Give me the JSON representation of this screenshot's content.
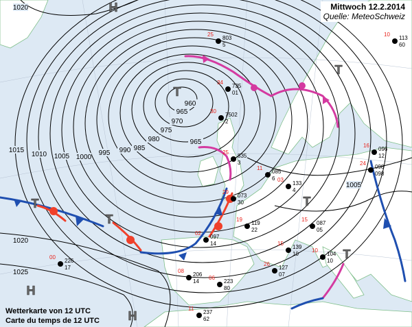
{
  "header": {
    "title": "Mittwoch 12.2.2014",
    "source": "Quelle: MeteoSchweiz"
  },
  "caption": {
    "line1": "Wetterkarte von 12 UTC",
    "line2": "Carte du temps de 12 UTC"
  },
  "colors": {
    "ocean": "#dde9f4",
    "land": "#ffffff",
    "coast": "#7fbf8a",
    "isobar": "#000000",
    "cold_front": "#1f4fb0",
    "warm_front": "#f0402a",
    "occlusion": "#d43aa0",
    "station_red": "#e8231c"
  },
  "isobar_labels": [
    "1020",
    "1015",
    "1010",
    "1005",
    "1000",
    "995",
    "990",
    "985",
    "980",
    "975",
    "970",
    "965",
    "960",
    "965",
    "1020",
    "1025",
    "1005"
  ],
  "pressure_centers": [
    "H",
    "H",
    "H",
    "T",
    "T",
    "T",
    "T",
    "T",
    "T"
  ],
  "stations": [
    {
      "a": "803",
      "b": "25",
      "c": "5"
    },
    {
      "a": "735",
      "b": "34",
      "c": "01"
    },
    {
      "a": "7502",
      "b": "30",
      "c": "2"
    },
    {
      "a": "835",
      "b": "25",
      "c": "3"
    },
    {
      "a": "073",
      "b": "29",
      "c": "30"
    },
    {
      "a": "119",
      "b": "19",
      "c": "22"
    },
    {
      "a": "139",
      "b": "15",
      "c": "10"
    },
    {
      "a": "127",
      "b": "26",
      "c": "07"
    },
    {
      "a": "085",
      "b": "11",
      "c": "6"
    },
    {
      "a": "133",
      "b": "03",
      "c": "4"
    },
    {
      "a": "104",
      "b": "10",
      "c": "10"
    },
    {
      "a": "087",
      "b": "15",
      "c": "05"
    },
    {
      "a": "097",
      "b": "02",
      "c": "14"
    },
    {
      "a": "226",
      "b": "00",
      "c": "17"
    },
    {
      "a": "098",
      "b": "24",
      "c": "098"
    },
    {
      "a": "096",
      "b": "16",
      "c": "12"
    },
    {
      "a": "113",
      "b": "10",
      "c": "60"
    },
    {
      "a": "223",
      "b": "06",
      "c": "80"
    },
    {
      "a": "206",
      "b": "08",
      "c": "14"
    },
    {
      "a": "237",
      "b": "11",
      "c": "62"
    }
  ]
}
